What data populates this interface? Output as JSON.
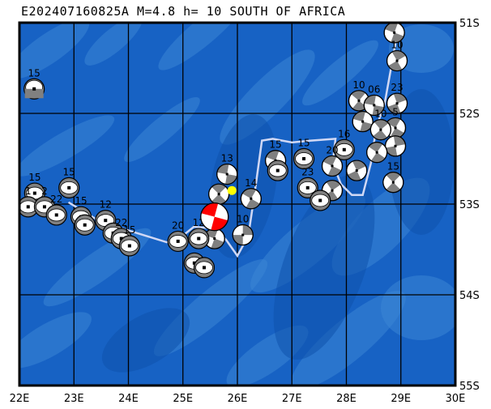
{
  "title": "E202407160825A M=4.8 h= 10 SOUTH OF AFRICA",
  "map": {
    "lon_range": [
      22,
      30
    ],
    "lat_range_south": [
      51,
      55
    ],
    "lon_ticks": [
      "22E",
      "23E",
      "24E",
      "25E",
      "26E",
      "27E",
      "28E",
      "29E",
      "30E"
    ],
    "lat_ticks": [
      "51S",
      "52S",
      "53S",
      "54S",
      "55S"
    ],
    "colors": {
      "ocean": "#1762c4",
      "ocean_light": "#3a85d6",
      "ocean_dark": "#0f52ad",
      "grid": "#000000",
      "plate_boundary": "#d0d8f5",
      "mechanism_fill": "#808080",
      "main_event": "#ff0000",
      "epicenter": "#ffff00"
    },
    "epicenter": {
      "lon": 25.9,
      "lat": 52.85
    },
    "plate_boundary": [
      [
        22.9,
        52.98
      ],
      [
        23.5,
        53.2
      ],
      [
        24.05,
        53.3
      ],
      [
        24.7,
        53.42
      ],
      [
        24.85,
        53.42
      ],
      [
        25.2,
        53.25
      ],
      [
        25.6,
        53.27
      ],
      [
        25.8,
        53.4
      ],
      [
        26.0,
        53.57
      ],
      [
        26.2,
        53.35
      ],
      [
        26.3,
        52.95
      ],
      [
        26.45,
        52.3
      ],
      [
        26.65,
        52.28
      ],
      [
        27.0,
        52.32
      ],
      [
        27.35,
        52.3
      ],
      [
        27.8,
        52.28
      ],
      [
        27.75,
        52.55
      ],
      [
        27.9,
        52.78
      ],
      [
        28.1,
        52.9
      ],
      [
        28.3,
        52.9
      ],
      [
        28.45,
        52.55
      ],
      [
        28.55,
        52.15
      ],
      [
        28.7,
        51.9
      ],
      [
        28.85,
        51.4
      ],
      [
        28.95,
        51.05
      ]
    ],
    "events": [
      {
        "lon": 28.88,
        "lat": 51.11,
        "depth": "12",
        "type": "q",
        "rot": 20
      },
      {
        "lon": 28.93,
        "lat": 51.42,
        "depth": "10",
        "type": "q",
        "rot": 60
      },
      {
        "lon": 22.27,
        "lat": 51.73,
        "depth": "15",
        "type": "h",
        "rot": 0
      },
      {
        "lon": 28.23,
        "lat": 51.86,
        "depth": "10",
        "type": "q",
        "rot": 40
      },
      {
        "lon": 28.51,
        "lat": 51.91,
        "depth": "06",
        "type": "q",
        "rot": 10
      },
      {
        "lon": 28.93,
        "lat": 51.89,
        "depth": "23",
        "type": "q",
        "rot": 70
      },
      {
        "lon": 28.9,
        "lat": 52.16,
        "depth": "5",
        "type": "q",
        "rot": 30
      },
      {
        "lon": 28.9,
        "lat": 52.36,
        "depth": "",
        "type": "q",
        "rot": 80
      },
      {
        "lon": 28.3,
        "lat": 52.09,
        "depth": "",
        "type": "q",
        "rot": 15
      },
      {
        "lon": 28.63,
        "lat": 52.18,
        "depth": "10",
        "type": "q",
        "rot": 50
      },
      {
        "lon": 28.56,
        "lat": 52.43,
        "depth": "",
        "type": "q",
        "rot": 35
      },
      {
        "lon": 27.96,
        "lat": 52.4,
        "depth": "16",
        "type": "e",
        "rot": 0
      },
      {
        "lon": 27.74,
        "lat": 52.58,
        "depth": "20",
        "type": "q",
        "rot": 25
      },
      {
        "lon": 28.19,
        "lat": 52.63,
        "depth": "",
        "type": "q",
        "rot": 65
      },
      {
        "lon": 28.86,
        "lat": 52.76,
        "depth": "15",
        "type": "x",
        "rot": 45
      },
      {
        "lon": 27.22,
        "lat": 52.5,
        "depth": "15",
        "type": "e",
        "rot": 0
      },
      {
        "lon": 26.7,
        "lat": 52.52,
        "depth": "15",
        "type": "q",
        "rot": 20
      },
      {
        "lon": 26.74,
        "lat": 52.63,
        "depth": "",
        "type": "e",
        "rot": 0
      },
      {
        "lon": 27.29,
        "lat": 52.82,
        "depth": "23",
        "type": "e",
        "rot": 0
      },
      {
        "lon": 27.74,
        "lat": 52.85,
        "depth": "",
        "type": "q",
        "rot": 55
      },
      {
        "lon": 27.52,
        "lat": 52.96,
        "depth": "",
        "type": "e",
        "rot": 0
      },
      {
        "lon": 26.25,
        "lat": 52.94,
        "depth": "14",
        "type": "q",
        "rot": 30
      },
      {
        "lon": 26.1,
        "lat": 53.34,
        "depth": "10",
        "type": "q",
        "rot": 90
      },
      {
        "lon": 25.81,
        "lat": 52.67,
        "depth": "13",
        "type": "q",
        "rot": 10
      },
      {
        "lon": 25.66,
        "lat": 52.89,
        "depth": "",
        "type": "q",
        "rot": 45
      },
      {
        "lon": 25.58,
        "lat": 53.38,
        "depth": "",
        "type": "q",
        "rot": 20
      },
      {
        "lon": 25.29,
        "lat": 53.38,
        "depth": "12",
        "type": "e",
        "rot": 0
      },
      {
        "lon": 25.21,
        "lat": 53.65,
        "depth": "",
        "type": "e",
        "rot": 0
      },
      {
        "lon": 25.39,
        "lat": 53.7,
        "depth": "",
        "type": "e",
        "rot": 0
      },
      {
        "lon": 24.91,
        "lat": 53.41,
        "depth": "20",
        "type": "e",
        "rot": 0
      },
      {
        "lon": 22.28,
        "lat": 52.88,
        "depth": "15",
        "type": "e",
        "rot": 0
      },
      {
        "lon": 22.91,
        "lat": 52.82,
        "depth": "15",
        "type": "e",
        "rot": 0
      },
      {
        "lon": 22.16,
        "lat": 53.03,
        "depth": "1",
        "type": "e",
        "rot": 0
      },
      {
        "lon": 22.46,
        "lat": 53.03,
        "depth": "2",
        "type": "e",
        "rot": 0
      },
      {
        "lon": 22.68,
        "lat": 53.12,
        "depth": "22",
        "type": "e",
        "rot": 0
      },
      {
        "lon": 23.13,
        "lat": 53.14,
        "depth": "15",
        "type": "e",
        "rot": 0
      },
      {
        "lon": 23.2,
        "lat": 53.23,
        "depth": "",
        "type": "e",
        "rot": 0
      },
      {
        "lon": 23.58,
        "lat": 53.18,
        "depth": "12",
        "type": "e",
        "rot": 0
      },
      {
        "lon": 23.72,
        "lat": 53.32,
        "depth": "",
        "type": "e",
        "rot": 0
      },
      {
        "lon": 23.87,
        "lat": 53.38,
        "depth": "22",
        "type": "e",
        "rot": 0
      },
      {
        "lon": 24.02,
        "lat": 53.46,
        "depth": "15",
        "type": "e",
        "rot": 0
      },
      {
        "lon": 25.58,
        "lat": 53.14,
        "depth": "",
        "type": "red",
        "rot": 15
      }
    ]
  }
}
